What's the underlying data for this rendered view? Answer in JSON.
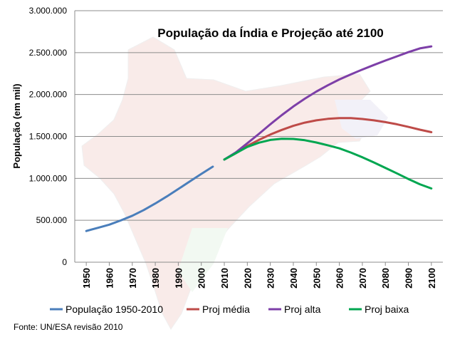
{
  "chart_data": {
    "type": "line",
    "title": "População da Índia e Projeção até 2100",
    "ylabel": "População (em mil)",
    "xlabel": "",
    "ylim": [
      0,
      3000000
    ],
    "yticks": [
      0,
      500000,
      1000000,
      1500000,
      2000000,
      2500000,
      3000000
    ],
    "ytick_labels": [
      "0",
      "500.000",
      "1.000.000",
      "1.500.000",
      "2.000.000",
      "2.500.000",
      "3.000.000"
    ],
    "xlim": [
      1945,
      2105
    ],
    "xticks": [
      1950,
      1960,
      1970,
      1980,
      1990,
      2000,
      2010,
      2020,
      2030,
      2040,
      2050,
      2060,
      2070,
      2080,
      2090,
      2100
    ],
    "xtick_labels": [
      "1950",
      "1960",
      "1970",
      "1980",
      "1990",
      "2000",
      "2010",
      "2020",
      "2030",
      "2040",
      "2050",
      "2060",
      "2070",
      "2080",
      "2090",
      "2100"
    ],
    "grid": "horizontal",
    "legend_position": "bottom",
    "series": [
      {
        "name": "População 1950-2010",
        "color": "#4a7ebb",
        "x": [
          1950,
          1955,
          1960,
          1965,
          1970,
          1975,
          1980,
          1985,
          1990,
          1995,
          2000,
          2005
        ],
        "values": [
          372000,
          410000,
          448000,
          498000,
          554000,
          622000,
          700000,
          784000,
          873000,
          964000,
          1053000,
          1140000
        ]
      },
      {
        "name": "Proj média",
        "color": "#be4b48",
        "x": [
          2010,
          2015,
          2020,
          2025,
          2030,
          2035,
          2040,
          2045,
          2050,
          2055,
          2060,
          2065,
          2070,
          2075,
          2080,
          2085,
          2090,
          2095,
          2100
        ],
        "values": [
          1225000,
          1300000,
          1387000,
          1458000,
          1523000,
          1578000,
          1627000,
          1665000,
          1692000,
          1710000,
          1718000,
          1718000,
          1708000,
          1692000,
          1671000,
          1645000,
          1614000,
          1581000,
          1551000
        ]
      },
      {
        "name": "Proj alta",
        "color": "#7d3fa8",
        "x": [
          2010,
          2015,
          2020,
          2025,
          2030,
          2035,
          2040,
          2045,
          2050,
          2055,
          2060,
          2065,
          2070,
          2075,
          2080,
          2085,
          2090,
          2095,
          2100
        ],
        "values": [
          1225000,
          1310000,
          1418000,
          1530000,
          1645000,
          1755000,
          1858000,
          1950000,
          2035000,
          2110000,
          2180000,
          2240000,
          2298000,
          2352000,
          2405000,
          2455000,
          2505000,
          2550000,
          2574000
        ]
      },
      {
        "name": "Proj baixa",
        "color": "#00a650",
        "x": [
          2010,
          2015,
          2020,
          2025,
          2030,
          2035,
          2040,
          2045,
          2050,
          2055,
          2060,
          2065,
          2070,
          2075,
          2080,
          2085,
          2090,
          2095,
          2100
        ],
        "values": [
          1225000,
          1300000,
          1375000,
          1425000,
          1458000,
          1472000,
          1470000,
          1455000,
          1428000,
          1395000,
          1358000,
          1308000,
          1252000,
          1190000,
          1125000,
          1060000,
          993000,
          930000,
          880000
        ]
      }
    ],
    "source": "Fonte: UN/ESA revisão 2010"
  }
}
